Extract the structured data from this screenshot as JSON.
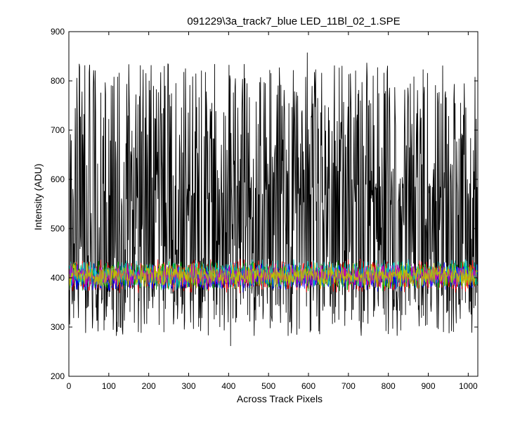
{
  "chart_data": {
    "type": "line",
    "title": "091229\\3a_track7_blue LED_11Bl_02_1.SPE",
    "xlabel": "Across Track Pixels",
    "ylabel": "Intensity (ADU)",
    "xlim": [
      0,
      1024
    ],
    "ylim": [
      200,
      900
    ],
    "x_ticks": [
      0,
      100,
      200,
      300,
      400,
      500,
      600,
      700,
      800,
      900,
      1000
    ],
    "y_ticks": [
      200,
      300,
      400,
      500,
      600,
      700,
      800,
      900
    ],
    "grid": false,
    "legend": "none",
    "n_points": 1024,
    "series": [
      {
        "color": "#000000",
        "baseline": 395,
        "band_low": 262,
        "band_high": 857,
        "peak_value": 857,
        "peak_x": 597,
        "min_value": 262,
        "min_x": 405
      },
      {
        "color": "#ff0000",
        "baseline": 400,
        "band_low": 368,
        "band_high": 440
      },
      {
        "color": "#00aa00",
        "baseline": 402,
        "band_low": 372,
        "band_high": 437
      },
      {
        "color": "#0000ff",
        "baseline": 398,
        "band_low": 370,
        "band_high": 432
      },
      {
        "color": "#00bfbf",
        "baseline": 405,
        "band_low": 375,
        "band_high": 438
      },
      {
        "color": "#bf00bf",
        "baseline": 400,
        "band_low": 378,
        "band_high": 430
      },
      {
        "color": "#bfbf00",
        "baseline": 401,
        "band_low": 376,
        "band_high": 432
      }
    ]
  }
}
